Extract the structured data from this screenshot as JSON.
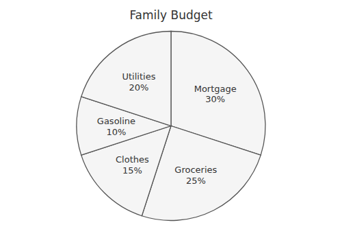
{
  "chart_data": {
    "type": "pie",
    "title": "Family Budget",
    "categories": [
      "Mortgage",
      "Groceries",
      "Clothes",
      "Gasoline",
      "Utilities"
    ],
    "values": [
      30,
      25,
      15,
      10,
      20
    ],
    "value_labels": [
      "30%",
      "25%",
      "15%",
      "10%",
      "20%"
    ],
    "data_labels": true,
    "color": "#f5f5f5"
  }
}
